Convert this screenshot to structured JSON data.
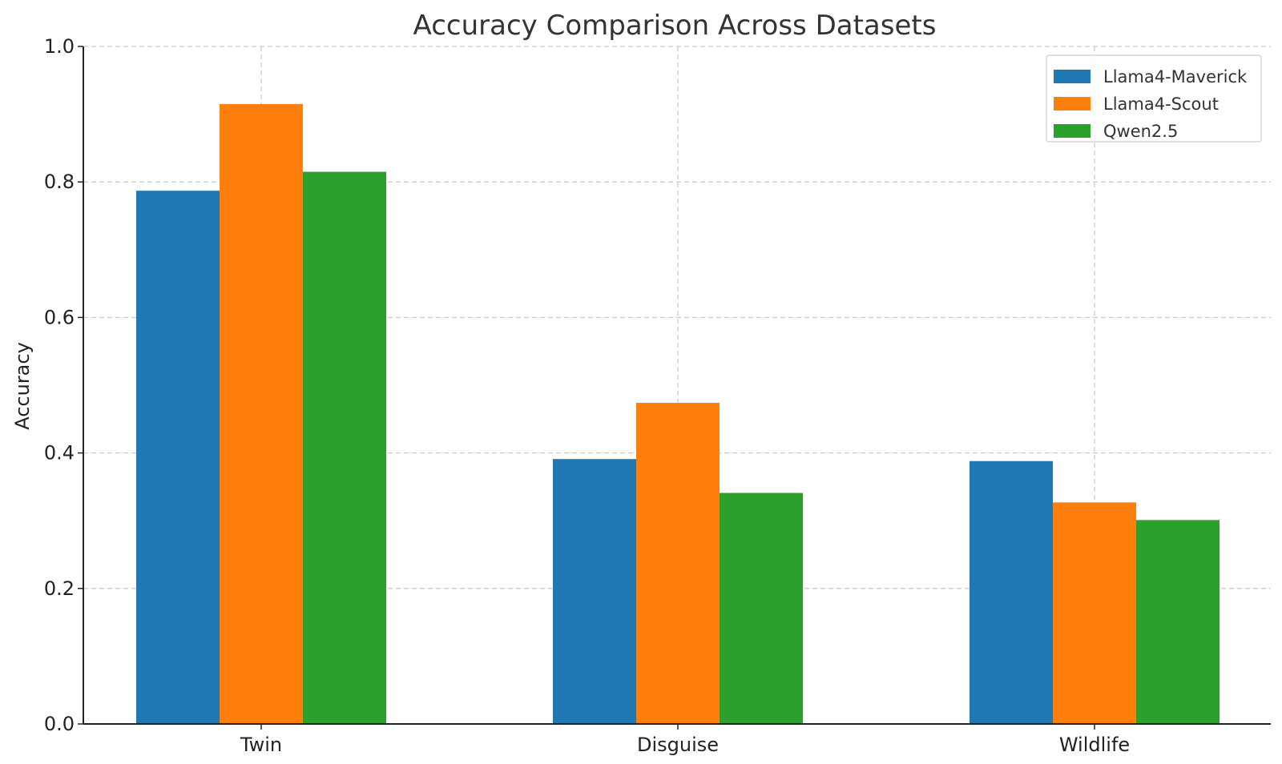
{
  "chart_data": {
    "type": "bar",
    "title": "Accuracy Comparison Across Datasets",
    "xlabel": "",
    "ylabel": "Accuracy",
    "categories": [
      "Twin",
      "Disguise",
      "Wildlife"
    ],
    "series": [
      {
        "name": "Llama4-Maverick",
        "color": "#1f77b4",
        "values": [
          0.787,
          0.391,
          0.388
        ]
      },
      {
        "name": "Llama4-Scout",
        "color": "#ff7f0e",
        "values": [
          0.915,
          0.474,
          0.327
        ]
      },
      {
        "name": "Qwen2.5",
        "color": "#2ca02c",
        "values": [
          0.815,
          0.341,
          0.301
        ]
      }
    ],
    "ylim": [
      0,
      1.0
    ],
    "yticks": [
      "0.0",
      "0.2",
      "0.4",
      "0.6",
      "0.8",
      "1.0"
    ],
    "grid": true,
    "legend_position": "top-right"
  }
}
